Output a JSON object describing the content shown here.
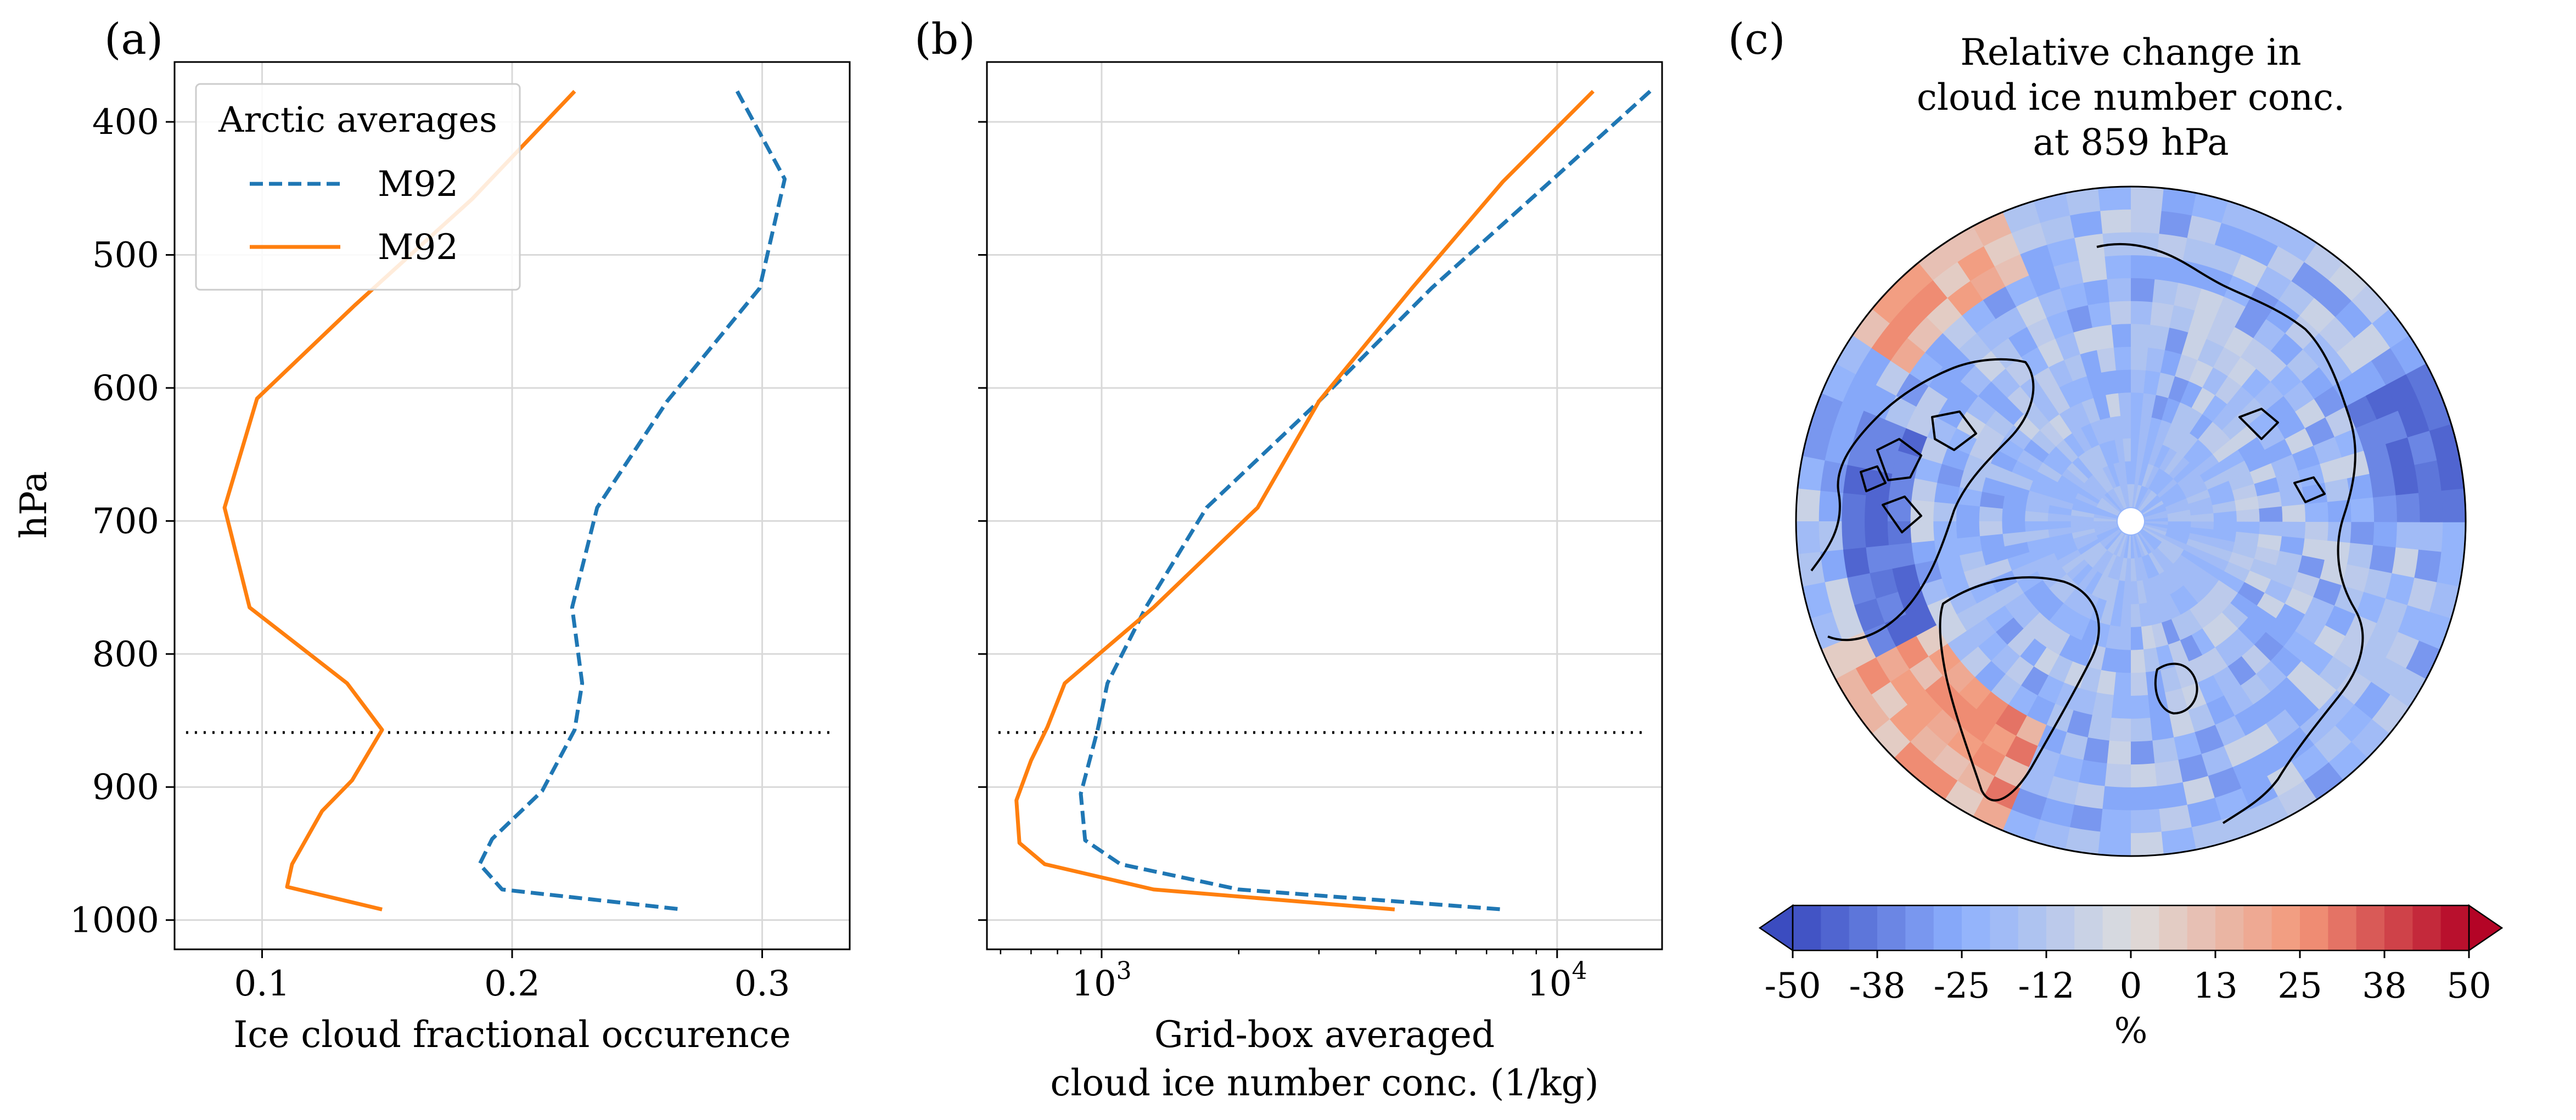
{
  "panels": {
    "a": {
      "label": "(a)",
      "xlabel": "Ice cloud fractional occurence",
      "ylabel": "hPa"
    },
    "b": {
      "label": "(b)",
      "xlabel_line1": "Grid-box averaged",
      "xlabel_line2": "cloud ice number conc. (1/kg)"
    },
    "c": {
      "label": "(c)",
      "title_lines": [
        "Relative change in",
        "cloud ice number conc.",
        "at 859 hPa"
      ]
    }
  },
  "legend": {
    "title": "Arctic averages",
    "entries": [
      {
        "label": "M92",
        "style": "dashed",
        "color": "#1f77b4"
      },
      {
        "label": "M92",
        "style": "solid",
        "color": "#ff7f0e"
      }
    ]
  },
  "colorbar": {
    "ticks": [
      "-50",
      "-38",
      "-25",
      "-12",
      "0",
      "13",
      "25",
      "38",
      "50"
    ],
    "unit": "%",
    "range": [
      -50,
      50
    ],
    "colormap": "coolwarm",
    "levels": 24,
    "extend": "both"
  },
  "colors": {
    "blue": "#1f77b4",
    "orange": "#ff7f0e",
    "grid": "#d9d9d9",
    "cold": "#3b4cc0",
    "warm": "#b40426"
  },
  "chart_data": [
    {
      "type": "line",
      "panel": "a",
      "xlim": [
        0.065,
        0.335
      ],
      "ylim": [
        1022,
        355
      ],
      "y_inverted": true,
      "grid": true,
      "xticks": [
        0.1,
        0.2,
        0.3
      ],
      "xtick_labels": [
        "0.1",
        "0.2",
        "0.3"
      ],
      "yticks": [
        400,
        500,
        600,
        700,
        800,
        900,
        1000
      ],
      "ytick_labels": [
        "400",
        "500",
        "600",
        "700",
        "800",
        "900",
        "1000"
      ],
      "reference_line_y": 859,
      "series": [
        {
          "name": "M92",
          "style": "dashed",
          "color": "#1f77b4",
          "x": [
            0.29,
            0.309,
            0.299,
            0.262,
            0.234,
            0.224,
            0.228,
            0.225,
            0.212,
            0.192,
            0.187,
            0.196,
            0.268
          ],
          "y": [
            377,
            443,
            525,
            610,
            690,
            765,
            822,
            857,
            903,
            939,
            958,
            977,
            992
          ]
        },
        {
          "name": "M92",
          "style": "solid",
          "color": "#ff7f0e",
          "x": [
            0.225,
            0.184,
            0.137,
            0.098,
            0.085,
            0.095,
            0.134,
            0.148,
            0.136,
            0.124,
            0.112,
            0.11,
            0.148
          ],
          "y": [
            377,
            458,
            538,
            608,
            690,
            765,
            822,
            857,
            895,
            918,
            958,
            975,
            992
          ]
        }
      ]
    },
    {
      "type": "line",
      "panel": "b",
      "x_scale": "log",
      "xlim": [
        560,
        17000
      ],
      "ylim": [
        1022,
        355
      ],
      "y_inverted": true,
      "grid": true,
      "xticks": [
        1000,
        10000
      ],
      "xtick_labels": [
        "10",
        "10"
      ],
      "xtick_exponents": [
        "3",
        "4"
      ],
      "reference_line_y": 859,
      "series": [
        {
          "name": "M92",
          "style": "dashed",
          "color": "#1f77b4",
          "x": [
            16000,
            9800,
            5300,
            3000,
            1700,
            1250,
            1030,
            980,
            900,
            920,
            1100,
            2000,
            7600
          ],
          "y": [
            377,
            443,
            525,
            610,
            690,
            765,
            822,
            857,
            905,
            940,
            958,
            977,
            992
          ]
        },
        {
          "name": "M92",
          "style": "solid",
          "color": "#ff7f0e",
          "x": [
            12000,
            7600,
            4800,
            3000,
            2200,
            1300,
            830,
            760,
            700,
            650,
            660,
            750,
            1300,
            4400
          ],
          "y": [
            377,
            445,
            525,
            610,
            690,
            765,
            822,
            855,
            880,
            910,
            942,
            958,
            977,
            992
          ]
        }
      ]
    },
    {
      "type": "heatmap",
      "panel": "c",
      "projection": "north-polar-stereographic",
      "variable": "relative change in cloud ice number concentration at 859 hPa",
      "unit": "%",
      "range": [
        -50,
        50
      ],
      "colormap": "coolwarm"
    }
  ]
}
